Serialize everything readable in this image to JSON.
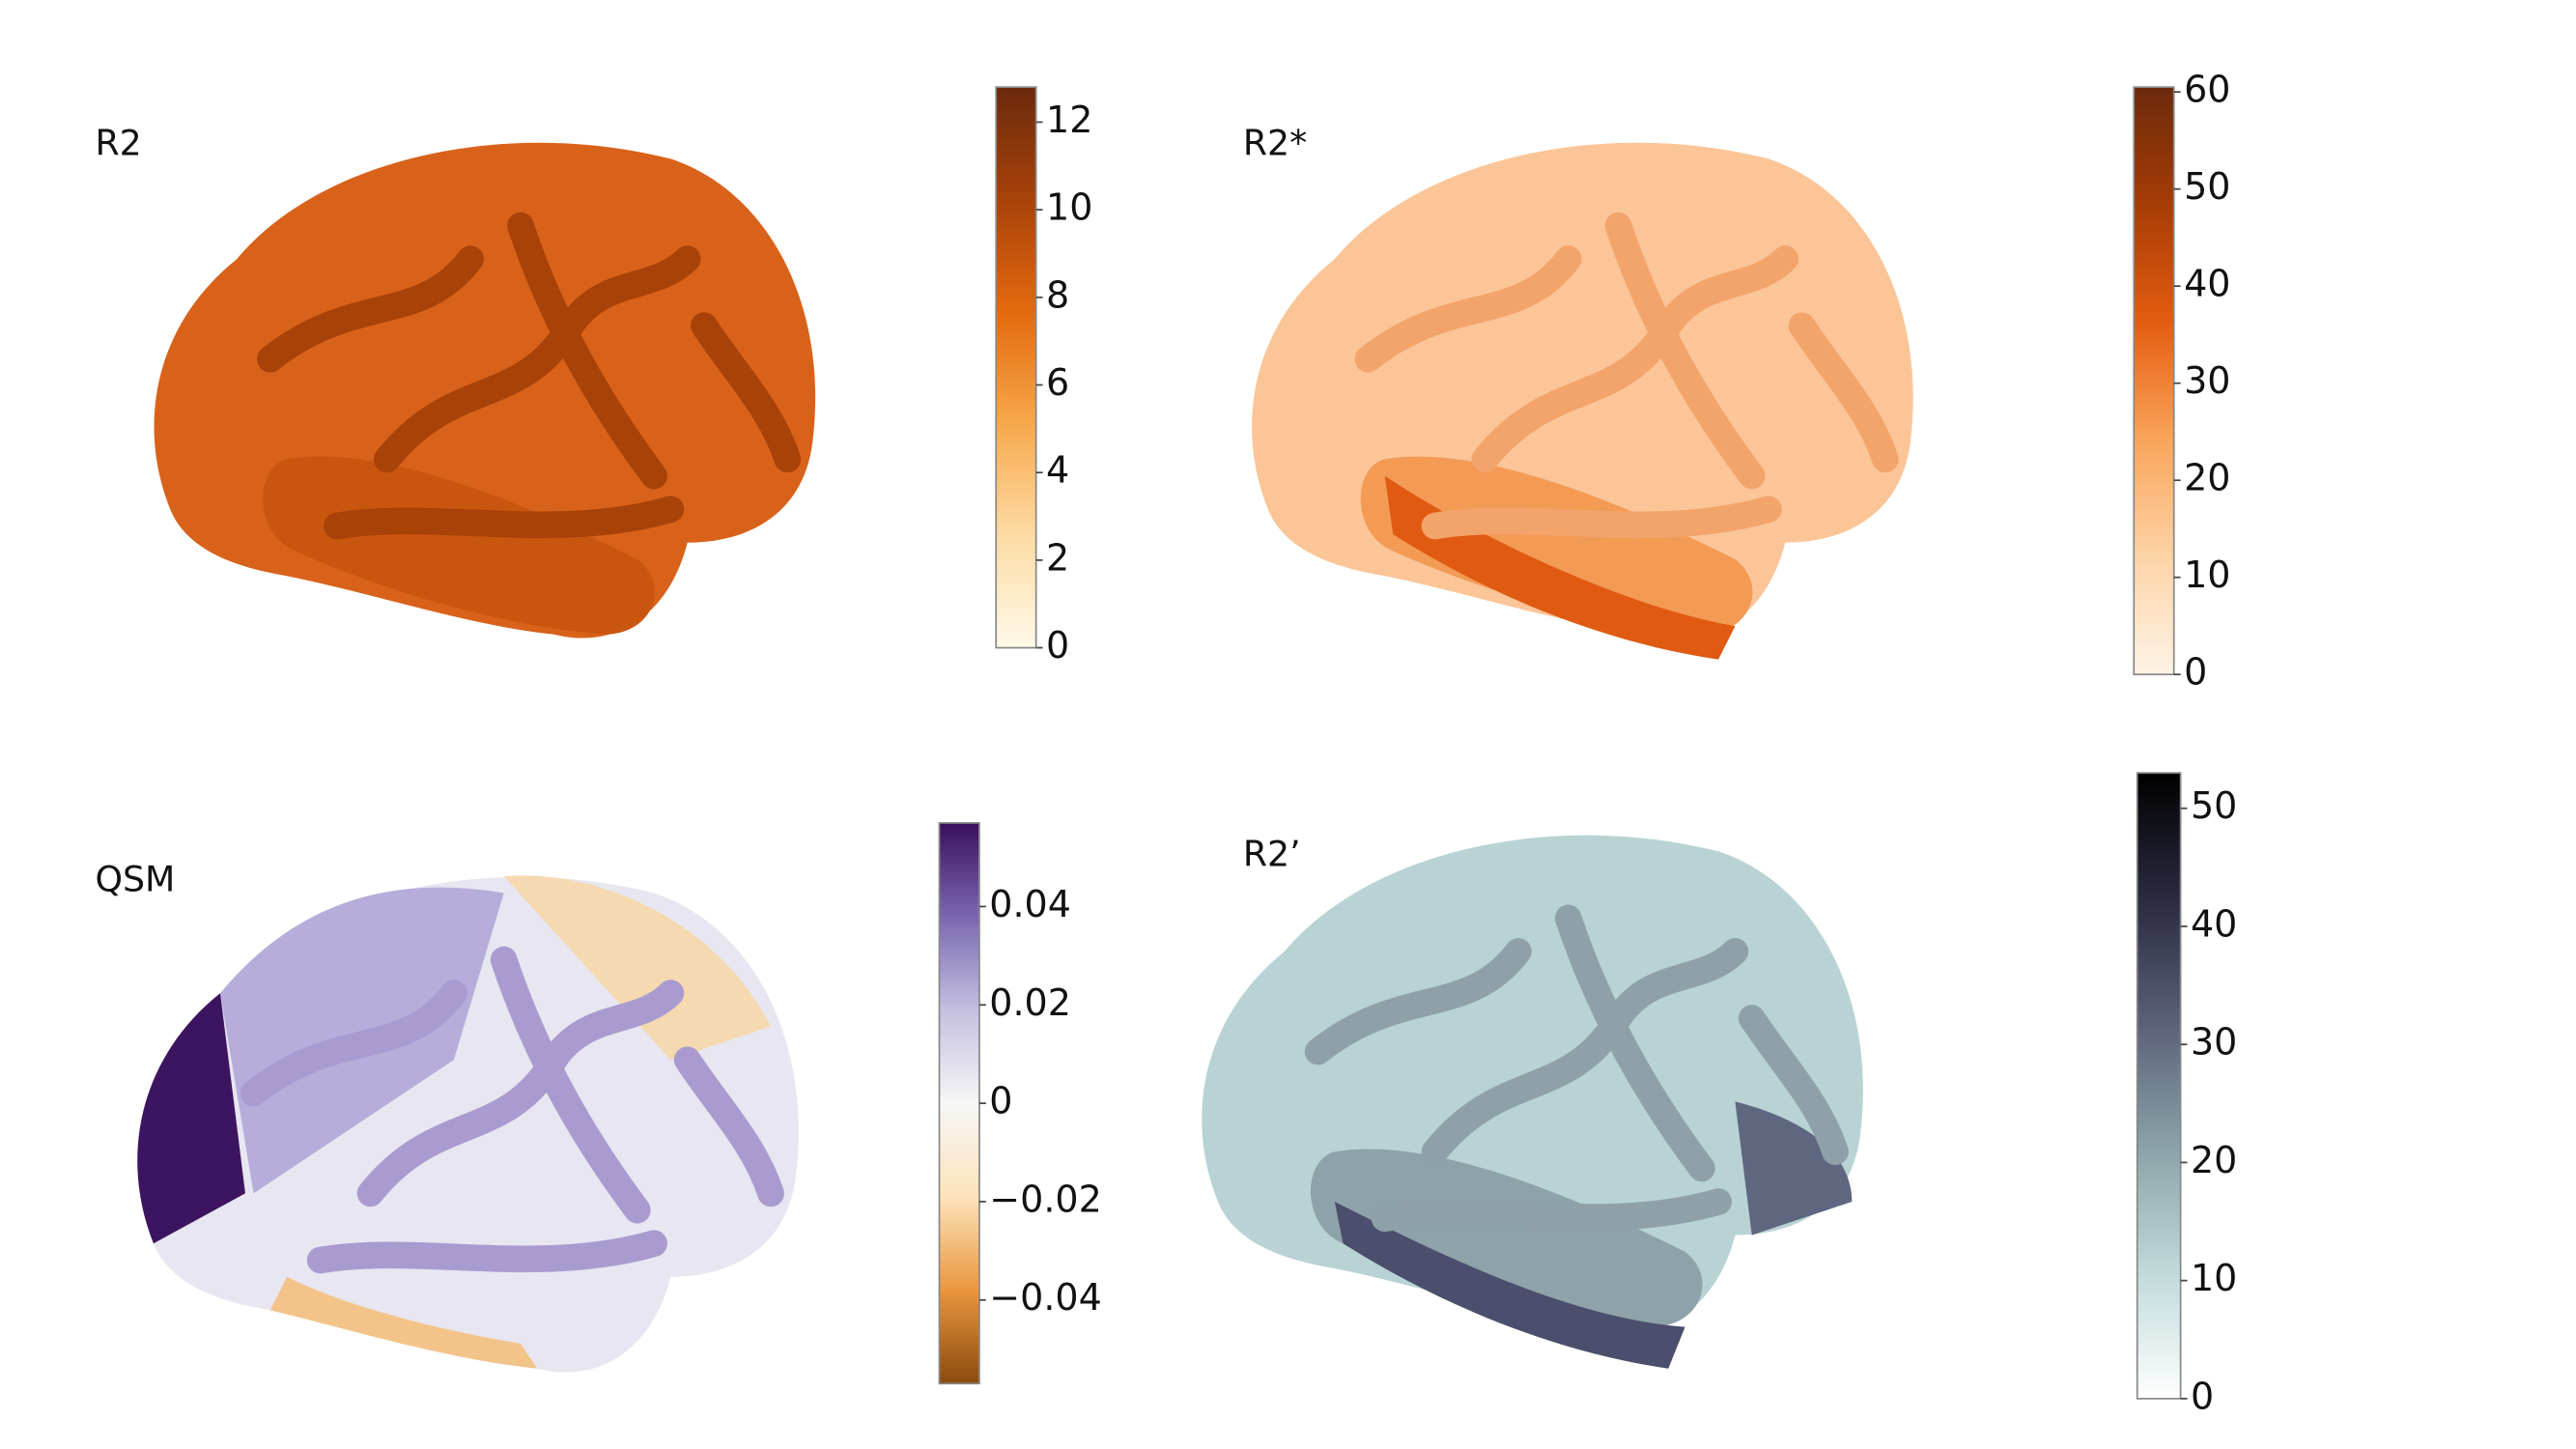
{
  "chart_data": [
    {
      "type": "colorbar",
      "title": "R2",
      "ylim": [
        0,
        12.8
      ],
      "yticks": [
        0,
        2,
        4,
        6,
        8,
        10,
        12
      ],
      "colors": [
        "#fef9e9",
        "#fddca4",
        "#f7a84c",
        "#e3690f",
        "#a8420a",
        "#6a2a0c"
      ]
    },
    {
      "type": "colorbar",
      "title": "R2*",
      "ylim": [
        0,
        60.5
      ],
      "yticks": [
        0,
        10,
        20,
        30,
        40,
        50,
        60
      ],
      "colors": [
        "#fdf3e6",
        "#fdd3a6",
        "#f9a55a",
        "#e45c10",
        "#a63c06",
        "#6b2a0c"
      ]
    },
    {
      "type": "colorbar",
      "title": "QSM",
      "ylim": [
        -0.057,
        0.057
      ],
      "yticks": [
        {
          "value": -0.04,
          "label": "−0.04"
        },
        {
          "value": -0.02,
          "label": "−0.02"
        },
        0,
        0.02,
        0.04
      ],
      "colors": [
        "#8a4a0e",
        "#e9963e",
        "#fde3bb",
        "#f6f6f6",
        "#c5bfe0",
        "#7a67b0",
        "#3b0f5e"
      ]
    },
    {
      "type": "colorbar",
      "title": "R2’",
      "ylim": [
        0,
        53
      ],
      "yticks": [
        0,
        10,
        20,
        30,
        40,
        50
      ],
      "colors": [
        "#ffffff",
        "#c0dada",
        "#8aa3a8",
        "#5a6079",
        "#2a2a40",
        "#000000"
      ]
    }
  ]
}
